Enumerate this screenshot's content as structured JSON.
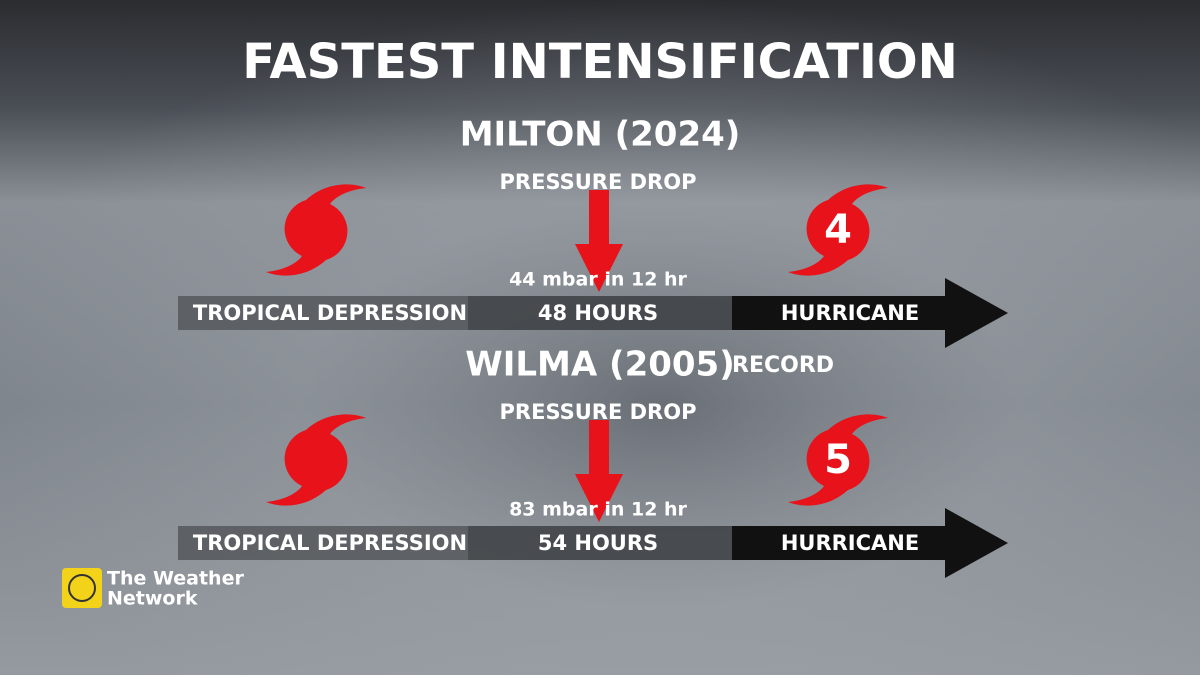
{
  "header": {
    "title": "FASTEST INTENSIFICATION"
  },
  "storms": [
    {
      "name": "MILTON (2024)",
      "pressure_label": "PRESSURE DROP",
      "pressure_drop": "44 mbar in 12 hr",
      "start": "TROPICAL DEPRESSION",
      "duration": "48 HOURS",
      "end": "HURRICANE",
      "category": "4"
    },
    {
      "name": "WILMA (2005)",
      "tag": "RECORD",
      "pressure_label": "PRESSURE DROP",
      "pressure_drop": "83 mbar in 12 hr",
      "start": "TROPICAL DEPRESSION",
      "duration": "54 HOURS",
      "end": "HURRICANE",
      "category": "5"
    }
  ],
  "logo": {
    "line1": "The Weather",
    "line2": "Network"
  }
}
